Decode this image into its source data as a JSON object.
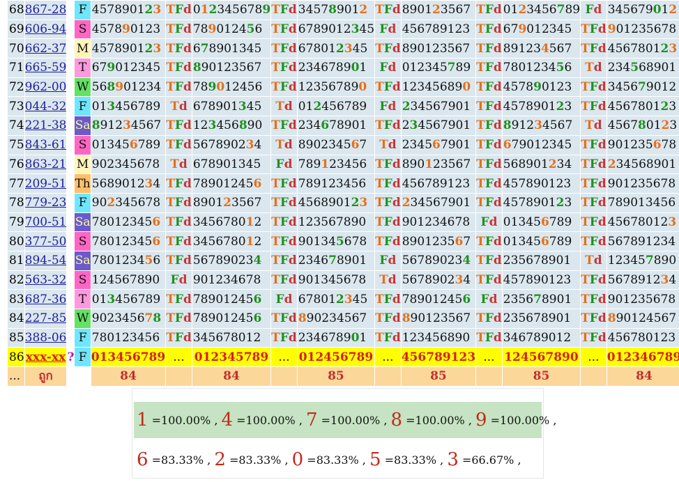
{
  "rows": [
    {
      "no": "68",
      "lot": "867-28",
      "day": "F",
      "day_color": "#6fe6ff",
      "c": [
        [
          "4578901[g2][o3]",
          "TFd"
        ],
        [
          "0[o1][g2]345678[g9]",
          "TFd"
        ],
        [
          "3457[g8]901[o2]",
          "TFd"
        ],
        [
          "8901[o2]3567",
          "TFd"
        ],
        [
          "01[o2]3456[g7]89",
          "Fd"
        ],
        [
          "345679[g0]1[o2]",
          "Td"
        ]
      ]
    },
    {
      "no": "69",
      "lot": "606-94",
      "day": "S",
      "day_color": "#ff66c4",
      "c": [
        [
          "4578[o9]0123",
          "TFd"
        ],
        [
          "78[o9]0124[g5]6",
          "TFd"
        ],
        [
          "6789012[g3]45",
          "Fd"
        ],
        [
          "456789123",
          "TFd"
        ],
        [
          "67[o9]012345",
          "TFd"
        ],
        [
          "[o9]01235678",
          "Td"
        ]
      ]
    },
    {
      "no": "70",
      "lot": "662-37",
      "day": "M",
      "day_color": "#fff6b8",
      "c": [
        [
          "4578901[g2][o3]",
          "TFd"
        ],
        [
          "6[g7]8901345",
          "TFd"
        ],
        [
          "67801[g2][o3]45",
          "TFd"
        ],
        [
          "890123567",
          "TFd"
        ],
        [
          "89123[o4]567",
          "TFd"
        ],
        [
          "4567801[g2][o3]",
          "TFd"
        ]
      ]
    },
    {
      "no": "71",
      "lot": "665-59",
      "day": "T",
      "day_color": "#ff99dd",
      "c": [
        [
          "67[g9]012345",
          "TFd"
        ],
        [
          "[g8]90123567",
          "TFd"
        ],
        [
          "2346789[g0]1",
          "Fd"
        ],
        [
          "012345[g7]89",
          "TFd"
        ],
        [
          "7801234[g5]6",
          "Td"
        ],
        [
          "234[g5]68901",
          "TFd"
        ]
      ]
    },
    {
      "no": "72",
      "lot": "962-00",
      "day": "W",
      "day_color": "#63e263",
      "c": [
        [
          "56[g8][o9]01234",
          "TFd"
        ],
        [
          "78[g9][o0]12456",
          "TFd"
        ],
        [
          "12356789[o0]",
          "TFd"
        ],
        [
          "12345689[o0]",
          "TFd"
        ],
        [
          "4578[g9]0123",
          "TFd"
        ],
        [
          "3456[g7]9012",
          "TFd"
        ]
      ]
    },
    {
      "no": "73",
      "lot": "044-32",
      "day": "F",
      "day_color": "#6fe6ff",
      "c": [
        [
          "01[g3]456789",
          "Td"
        ],
        [
          "678901[g3]45",
          "Td"
        ],
        [
          "01[g2]456789",
          "Fd"
        ],
        [
          "[g2]34567901",
          "TFd"
        ],
        [
          "4578901[g2]3",
          "TFd"
        ],
        [
          "4567801[g2]3",
          "TFd"
        ]
      ]
    },
    {
      "no": "74",
      "lot": "221-38",
      "day": "Sa",
      "day_color": "#6a5acd",
      "day_text": "#ffff88",
      "c": [
        [
          "[g8]912[o3]4567",
          "TFd"
        ],
        [
          "12[g3]456[g8]90",
          "TFd"
        ],
        [
          "234[g6]78901",
          "TFd"
        ],
        [
          "2[g3]4567901",
          "TFd"
        ],
        [
          "[g8]912[o3]4567",
          "Td"
        ],
        [
          "4567[g8]01[o2]3",
          "TFd"
        ]
      ]
    },
    {
      "no": "75",
      "lot": "843-61",
      "day": "S",
      "day_color": "#ff66c4",
      "c": [
        [
          "01345[o6]789",
          "TFd"
        ],
        [
          "5678902[o3]4",
          "Td"
        ],
        [
          "8902345[o6]7",
          "Td"
        ],
        [
          "2345[o6]7901",
          "TFd"
        ],
        [
          "[o6]79012345",
          "TFd"
        ],
        [
          "901235[o6]78",
          "TFd"
        ]
      ]
    },
    {
      "no": "76",
      "lot": "863-21",
      "day": "M",
      "day_color": "#fff6b8",
      "c": [
        [
          "902345678",
          "Td"
        ],
        [
          "678901345",
          "Fd"
        ],
        [
          "789[o1]23456",
          "TFd"
        ],
        [
          "890[o1]23567",
          "TFd"
        ],
        [
          "568901[o2]34",
          "TFd"
        ],
        [
          "[o2]34568901",
          "TFd"
        ]
      ]
    },
    {
      "no": "77",
      "lot": "209-51",
      "day": "Th",
      "day_color": "#ffbf6a",
      "c": [
        [
          "5689012[o3]4",
          "TFd"
        ],
        [
          "78901245[o6]",
          "TFd"
        ],
        [
          "789123456",
          "TFd"
        ],
        [
          "456789123",
          "TFd"
        ],
        [
          "457890123",
          "TFd"
        ],
        [
          "901235678",
          "TFd"
        ]
      ]
    },
    {
      "no": "78",
      "lot": "779-23",
      "day": "F",
      "day_color": "#6fe6ff",
      "c": [
        [
          "90[o2]345678",
          "TFd"
        ],
        [
          "8901[o2]3567",
          "TFd"
        ],
        [
          "4568901[g2][o3]",
          "TFd"
        ],
        [
          "[o2]34567901",
          "TFd"
        ],
        [
          "4578901[g2]3",
          "TFd"
        ],
        [
          "789013456",
          "Fd"
        ]
      ]
    },
    {
      "no": "79",
      "lot": "700-51",
      "day": "Sa",
      "day_color": "#6a5acd",
      "day_text": "#ffff88",
      "c": [
        [
          "78012345[o6]",
          "TFd"
        ],
        [
          "3456780[o1]2",
          "TFd"
        ],
        [
          "123567890",
          "TFd"
        ],
        [
          "901234678",
          "Fd"
        ],
        [
          "01345[o6]789",
          "TFd"
        ],
        [
          "45678012[o3]",
          "TFd"
        ]
      ]
    },
    {
      "no": "80",
      "lot": "377-50",
      "day": "S",
      "day_color": "#ff66c4",
      "c": [
        [
          "78012345[o6]",
          "TFd"
        ],
        [
          "3456780[o1]2",
          "TFd"
        ],
        [
          "90134[g5]678",
          "TFd"
        ],
        [
          "8901235[o6]7",
          "TFd"
        ],
        [
          "01345[o6]789",
          "TFd"
        ],
        [
          "567891234",
          "Td"
        ]
      ]
    },
    {
      "no": "81",
      "lot": "894-54",
      "day": "Sa",
      "day_color": "#6a5acd",
      "day_text": "#ffff88",
      "c": [
        [
          "7801234[o5]6",
          "TFd"
        ],
        [
          "56789023[g4]",
          "TFd"
        ],
        [
          "2346[g7]8901",
          "Fd"
        ],
        [
          "56789023[g4]",
          "TFd"
        ],
        [
          "235678901",
          "Td"
        ],
        [
          "12345[g7]890",
          "TFd"
        ]
      ]
    },
    {
      "no": "82",
      "lot": "563-32",
      "day": "S",
      "day_color": "#ff66c4",
      "c": [
        [
          "124567890",
          "Fd"
        ],
        [
          "901234678",
          "TFd"
        ],
        [
          "901345678",
          "Td"
        ],
        [
          "5678902[o3]4",
          "TFd"
        ],
        [
          "457890123",
          "TFd"
        ],
        [
          "5678912[o3]4",
          "TFd"
        ]
      ]
    },
    {
      "no": "83",
      "lot": "687-36",
      "day": "T",
      "day_color": "#ff99dd",
      "c": [
        [
          "01[g3]456789",
          "TFd"
        ],
        [
          "78901245[g6]",
          "Fd"
        ],
        [
          "67801[g2][o3]45",
          "TFd"
        ],
        [
          "78901245[g6]",
          "Fd"
        ],
        [
          "2356[g7]8901",
          "TFd"
        ],
        [
          "901235678",
          "TFd"
        ]
      ]
    },
    {
      "no": "84",
      "lot": "227-85",
      "day": "W",
      "day_color": "#63e263",
      "c": [
        [
          "9023456[o7][g8]",
          "TFd"
        ],
        [
          "78901245[g6]",
          "TFd"
        ],
        [
          "[o8]90234567",
          "TFd"
        ],
        [
          "[o8]90123567",
          "TFd"
        ],
        [
          "235678901",
          "TFd"
        ],
        [
          "[o8]90124567",
          "TFd"
        ]
      ]
    },
    {
      "no": "85",
      "lot": "388-06",
      "day": "F",
      "day_color": "#6fe6ff",
      "c": [
        [
          "780123456",
          "TFd"
        ],
        [
          "345678012",
          "TFd"
        ],
        [
          "2346789[g0]1",
          "TFd"
        ],
        [
          "123456890",
          "TFd"
        ],
        [
          "346789012",
          "TFd"
        ],
        [
          "456780123",
          "TFd"
        ]
      ]
    }
  ],
  "current": {
    "no": "86",
    "lot": "xxx-xx",
    "q": "?",
    "day": "F",
    "c": [
      "013456789",
      "012345789",
      "012456789",
      "456789123",
      "124567890",
      "012346789"
    ],
    "tag": "..."
  },
  "footer": {
    "no": "...",
    "label": "ถูก",
    "totals": [
      "84",
      "84",
      "85",
      "85",
      "85",
      "84"
    ]
  },
  "stats": {
    "row1": [
      [
        "1",
        "=100.00%"
      ],
      [
        "4",
        "=100.00%"
      ],
      [
        "7",
        "=100.00%"
      ],
      [
        "8",
        "=100.00%"
      ],
      [
        "9",
        "=100.00%"
      ]
    ],
    "row2": [
      [
        "6",
        "=83.33%"
      ],
      [
        "2",
        "=83.33%"
      ],
      [
        "0",
        "=83.33%"
      ],
      [
        "5",
        "=83.33%"
      ],
      [
        "3",
        "=66.67%"
      ]
    ],
    "row1_bg": "#c6e3c3"
  },
  "colors": {
    "cell": "#dbe7ee",
    "current": "#ffff00",
    "footer": "#fcd79a",
    "tag_t": "#e3701c",
    "tag_f": "#1f8f1f",
    "tag_d": "#c73535"
  }
}
